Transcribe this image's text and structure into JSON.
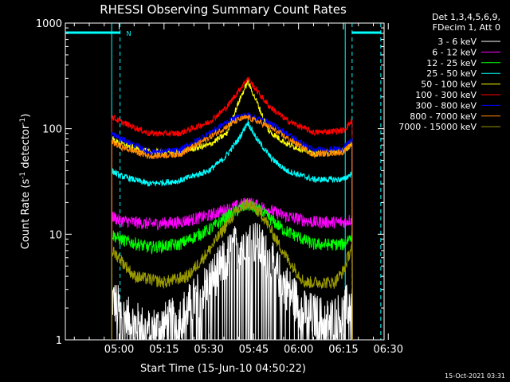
{
  "chart_data": {
    "type": "line",
    "title": "RHESSI Observing Summary Count Rates",
    "xlabel": "Start Time (15-Jun-10 04:50:22)",
    "ylabel_main": "Count Rate (s",
    "ylabel_sup1": "-1",
    "ylabel_mid": " detector",
    "ylabel_sup2": "-1",
    "ylabel_end": ")",
    "y_scale": "log",
    "ylim": [
      1,
      1000
    ],
    "xlim_minutes": [
      -8,
      98
    ],
    "x_ticks": [
      {
        "label": "05:00",
        "min": 10
      },
      {
        "label": "05:15",
        "min": 25
      },
      {
        "label": "05:30",
        "min": 40
      },
      {
        "label": "05:45",
        "min": 55
      },
      {
        "label": "06:00",
        "min": 70
      },
      {
        "label": "06:15",
        "min": 85
      },
      {
        "label": "06:30",
        "min": 100
      }
    ],
    "y_ticks": [
      {
        "label": "1",
        "v": 1
      },
      {
        "label": "10",
        "v": 10
      },
      {
        "label": "100",
        "v": 100
      },
      {
        "label": "1000",
        "v": 1000
      }
    ],
    "legend_header": [
      "Det 1,3,4,5,6,9,",
      "FDecim 1, Att 0"
    ],
    "night_marker": "N",
    "day_intervals": [
      [
        -8,
        10.3
      ],
      [
        87.9,
        97.5
      ]
    ],
    "series": [
      {
        "name": "3 - 6 keV",
        "color": "#ffffff",
        "sparse": true,
        "points": [
          [
            7.5,
            2.5
          ],
          [
            12,
            1.6
          ],
          [
            20,
            1.2
          ],
          [
            30,
            1.6
          ],
          [
            40,
            3.5
          ],
          [
            48,
            7
          ],
          [
            53,
            10
          ],
          [
            58,
            7
          ],
          [
            65,
            3.5
          ],
          [
            72,
            1.8
          ],
          [
            80,
            1.5
          ],
          [
            85,
            1.8
          ],
          [
            88,
            2.5
          ]
        ]
      },
      {
        "name": "6 - 12 keV",
        "color": "#ff00ff",
        "points": [
          [
            7.5,
            15
          ],
          [
            10,
            13.5
          ],
          [
            20,
            12.5
          ],
          [
            30,
            13
          ],
          [
            40,
            15
          ],
          [
            48,
            18
          ],
          [
            53,
            20
          ],
          [
            58,
            18
          ],
          [
            65,
            15
          ],
          [
            75,
            13
          ],
          [
            85,
            13
          ],
          [
            88,
            14
          ]
        ]
      },
      {
        "name": "12 - 25 keV",
        "color": "#00ff00",
        "points": [
          [
            7.5,
            10
          ],
          [
            10,
            9
          ],
          [
            20,
            7.5
          ],
          [
            30,
            8
          ],
          [
            40,
            11
          ],
          [
            48,
            16
          ],
          [
            53,
            19
          ],
          [
            58,
            16
          ],
          [
            65,
            11
          ],
          [
            75,
            8
          ],
          [
            85,
            8
          ],
          [
            88,
            10
          ]
        ]
      },
      {
        "name": "25 - 50 keV",
        "color": "#00ffff",
        "points": [
          [
            7.5,
            40
          ],
          [
            10,
            36
          ],
          [
            20,
            30
          ],
          [
            30,
            32
          ],
          [
            40,
            40
          ],
          [
            45,
            52
          ],
          [
            50,
            80
          ],
          [
            53,
            115
          ],
          [
            56,
            80
          ],
          [
            61,
            52
          ],
          [
            66,
            40
          ],
          [
            75,
            33
          ],
          [
            85,
            33
          ],
          [
            88,
            38
          ]
        ]
      },
      {
        "name": "50 - 100 keV",
        "color": "#ffff00",
        "points": [
          [
            7.5,
            80
          ],
          [
            10,
            73
          ],
          [
            20,
            60
          ],
          [
            30,
            60
          ],
          [
            40,
            70
          ],
          [
            46,
            90
          ],
          [
            50,
            180
          ],
          [
            53,
            280
          ],
          [
            56,
            180
          ],
          [
            60,
            95
          ],
          [
            66,
            72
          ],
          [
            75,
            58
          ],
          [
            85,
            62
          ],
          [
            88,
            72
          ]
        ]
      },
      {
        "name": "100 - 300 keV",
        "color": "#ff0000",
        "points": [
          [
            7.5,
            130
          ],
          [
            10,
            118
          ],
          [
            20,
            90
          ],
          [
            30,
            90
          ],
          [
            40,
            115
          ],
          [
            46,
            160
          ],
          [
            50,
            230
          ],
          [
            53,
            300
          ],
          [
            56,
            230
          ],
          [
            60,
            165
          ],
          [
            66,
            120
          ],
          [
            75,
            92
          ],
          [
            85,
            96
          ],
          [
            88,
            120
          ]
        ]
      },
      {
        "name": "300 - 800 keV",
        "color": "#0000ff",
        "points": [
          [
            7.5,
            90
          ],
          [
            10,
            82
          ],
          [
            20,
            60
          ],
          [
            30,
            62
          ],
          [
            40,
            90
          ],
          [
            46,
            115
          ],
          [
            50,
            130
          ],
          [
            53,
            135
          ],
          [
            56,
            125
          ],
          [
            60,
            115
          ],
          [
            66,
            90
          ],
          [
            75,
            62
          ],
          [
            85,
            65
          ],
          [
            88,
            80
          ]
        ]
      },
      {
        "name": "800 - 7000 keV",
        "color": "#ff8800",
        "points": [
          [
            7.5,
            75
          ],
          [
            10,
            68
          ],
          [
            20,
            55
          ],
          [
            30,
            57
          ],
          [
            40,
            82
          ],
          [
            46,
            105
          ],
          [
            50,
            122
          ],
          [
            53,
            128
          ],
          [
            56,
            118
          ],
          [
            60,
            105
          ],
          [
            66,
            82
          ],
          [
            75,
            57
          ],
          [
            85,
            60
          ],
          [
            88,
            72
          ]
        ]
      },
      {
        "name": "7000 - 15000 keV",
        "color": "#999900",
        "points": [
          [
            7.5,
            7
          ],
          [
            10,
            6
          ],
          [
            15,
            4
          ],
          [
            25,
            3.5
          ],
          [
            33,
            4
          ],
          [
            40,
            7
          ],
          [
            48,
            15
          ],
          [
            53,
            20
          ],
          [
            58,
            15
          ],
          [
            66,
            6
          ],
          [
            72,
            3.5
          ],
          [
            82,
            3.5
          ],
          [
            85,
            4.5
          ],
          [
            88,
            8
          ]
        ]
      }
    ],
    "footer_date": "15-Oct-2021 03:31"
  }
}
